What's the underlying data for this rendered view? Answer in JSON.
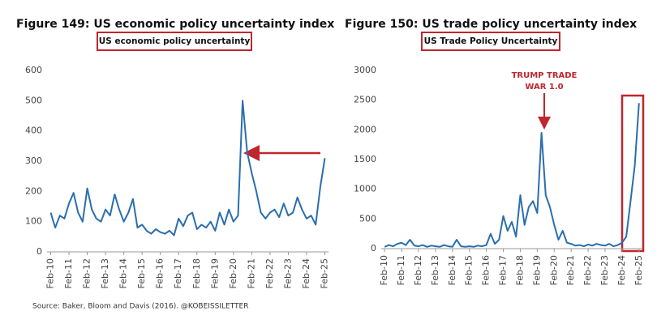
{
  "chart_data": [
    {
      "type": "line",
      "title": "Figure 149: US economic policy uncertainty index",
      "subtitle": "US economic policy uncertainty",
      "xlim": [
        2009.8,
        2025.2
      ],
      "xticks": [
        {
          "value": 2010,
          "label": "Feb-10"
        },
        {
          "value": 2011,
          "label": "Feb-11"
        },
        {
          "value": 2012,
          "label": "Feb-12"
        },
        {
          "value": 2013,
          "label": "Feb-13"
        },
        {
          "value": 2014,
          "label": "Feb-14"
        },
        {
          "value": 2015,
          "label": "Feb-15"
        },
        {
          "value": 2016,
          "label": "Feb-16"
        },
        {
          "value": 2017,
          "label": "Feb-17"
        },
        {
          "value": 2018,
          "label": "Feb-18"
        },
        {
          "value": 2019,
          "label": "Feb-19"
        },
        {
          "value": 2020,
          "label": "Feb-20"
        },
        {
          "value": 2021,
          "label": "Feb-21"
        },
        {
          "value": 2022,
          "label": "Feb-22"
        },
        {
          "value": 2023,
          "label": "Feb-23"
        },
        {
          "value": 2024,
          "label": "Feb-24"
        },
        {
          "value": 2025,
          "label": "Feb-25"
        }
      ],
      "ylim": [
        0,
        600
      ],
      "yticks": [
        0,
        100,
        200,
        300,
        400,
        500,
        600
      ],
      "x": [
        2010,
        2010.25,
        2010.5,
        2010.75,
        2011,
        2011.25,
        2011.5,
        2011.75,
        2012,
        2012.25,
        2012.5,
        2012.75,
        2013,
        2013.25,
        2013.5,
        2013.75,
        2014,
        2014.25,
        2014.5,
        2014.75,
        2015,
        2015.25,
        2015.5,
        2015.75,
        2016,
        2016.25,
        2016.5,
        2016.75,
        2017,
        2017.25,
        2017.5,
        2017.75,
        2018,
        2018.25,
        2018.5,
        2018.75,
        2019,
        2019.25,
        2019.5,
        2019.75,
        2020,
        2020.25,
        2020.5,
        2020.75,
        2021,
        2021.25,
        2021.5,
        2021.75,
        2022,
        2022.25,
        2022.5,
        2022.75,
        2023,
        2023.25,
        2023.5,
        2023.75,
        2024,
        2024.25,
        2024.5,
        2024.75,
        2025
      ],
      "series": [
        {
          "color": "#2a6ead",
          "values": [
            130,
            80,
            120,
            110,
            160,
            195,
            130,
            100,
            210,
            140,
            110,
            100,
            140,
            120,
            190,
            140,
            100,
            130,
            175,
            80,
            90,
            70,
            60,
            75,
            65,
            60,
            70,
            55,
            110,
            85,
            120,
            130,
            75,
            90,
            80,
            100,
            70,
            130,
            90,
            140,
            100,
            120,
            500,
            330,
            260,
            200,
            130,
            110,
            130,
            140,
            115,
            160,
            120,
            130,
            180,
            140,
            110,
            120,
            90,
            215,
            310
          ]
        }
      ]
    },
    {
      "type": "line",
      "title": "Figure 150: US trade policy uncertainty index",
      "subtitle": "US Trade Policy Uncertainty",
      "annotation": [
        "TRUMP TRADE",
        "WAR 1.0"
      ],
      "xlim": [
        2009.8,
        2025.2
      ],
      "xticks": [
        {
          "value": 2010,
          "label": "Feb-10"
        },
        {
          "value": 2011,
          "label": "Feb-11"
        },
        {
          "value": 2012,
          "label": "Feb-12"
        },
        {
          "value": 2013,
          "label": "Feb-13"
        },
        {
          "value": 2014,
          "label": "Feb-14"
        },
        {
          "value": 2015,
          "label": "Feb-15"
        },
        {
          "value": 2016,
          "label": "Feb-16"
        },
        {
          "value": 2017,
          "label": "Feb-17"
        },
        {
          "value": 2018,
          "label": "Feb-18"
        },
        {
          "value": 2019,
          "label": "Feb-19"
        },
        {
          "value": 2020,
          "label": "Feb-20"
        },
        {
          "value": 2021,
          "label": "Feb-21"
        },
        {
          "value": 2022,
          "label": "Feb-22"
        },
        {
          "value": 2023,
          "label": "Feb-23"
        },
        {
          "value": 2024,
          "label": "Feb-24"
        },
        {
          "value": 2025,
          "label": "Feb-25"
        }
      ],
      "ylim": [
        0,
        3000
      ],
      "yticks": [
        0,
        500,
        1000,
        1500,
        2000,
        2500,
        3000
      ],
      "x": [
        2010,
        2010.25,
        2010.5,
        2010.75,
        2011,
        2011.25,
        2011.5,
        2011.75,
        2012,
        2012.25,
        2012.5,
        2012.75,
        2013,
        2013.25,
        2013.5,
        2013.75,
        2014,
        2014.25,
        2014.5,
        2014.75,
        2015,
        2015.25,
        2015.5,
        2015.75,
        2016,
        2016.25,
        2016.5,
        2016.75,
        2017,
        2017.25,
        2017.5,
        2017.75,
        2018,
        2018.25,
        2018.5,
        2018.75,
        2019,
        2019.25,
        2019.5,
        2019.75,
        2020,
        2020.25,
        2020.5,
        2020.75,
        2021,
        2021.25,
        2021.5,
        2021.75,
        2022,
        2022.25,
        2022.5,
        2022.75,
        2023,
        2023.25,
        2023.5,
        2023.75,
        2024,
        2024.25,
        2024.5,
        2024.75,
        2025
      ],
      "series": [
        {
          "color": "#2a6ead",
          "values": [
            30,
            60,
            40,
            80,
            100,
            60,
            150,
            50,
            40,
            60,
            30,
            50,
            40,
            30,
            60,
            40,
            30,
            150,
            40,
            30,
            40,
            30,
            50,
            40,
            60,
            250,
            80,
            150,
            550,
            300,
            450,
            200,
            900,
            400,
            700,
            800,
            600,
            1950,
            900,
            700,
            400,
            150,
            300,
            100,
            80,
            50,
            60,
            40,
            70,
            50,
            80,
            60,
            50,
            80,
            40,
            60,
            100,
            200,
            800,
            1400,
            2450
          ]
        }
      ]
    }
  ],
  "source": "Source: Baker, Bloom and Davis (2016). @KOBEISSILETTER"
}
